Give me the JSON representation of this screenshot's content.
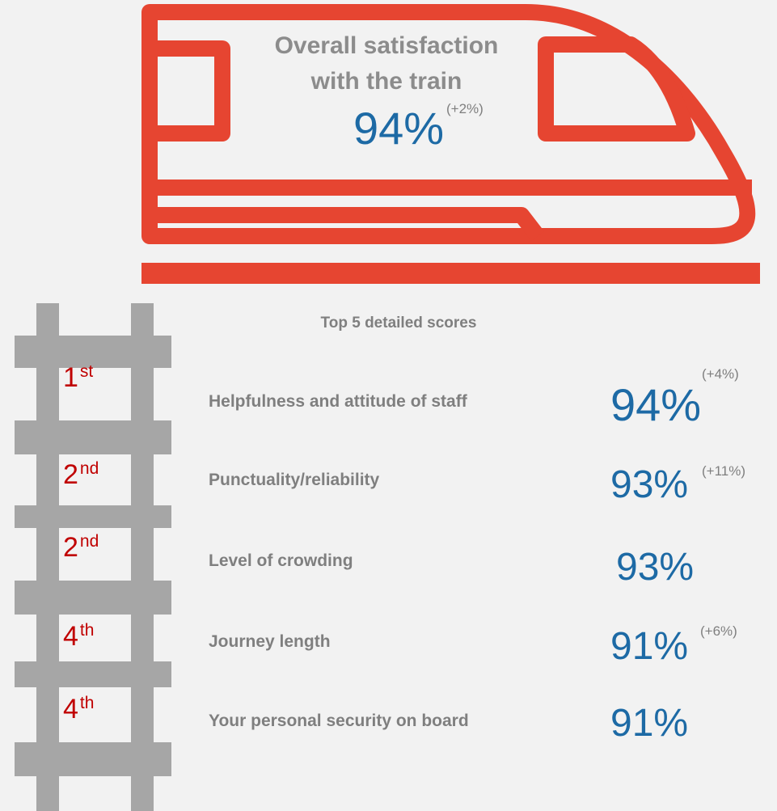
{
  "headline": {
    "title_line1": "Overall satisfaction",
    "title_line2": "with the train",
    "value": "94%",
    "change": "(+2%)"
  },
  "section_title": "Top 5 detailed scores",
  "items": [
    {
      "rank": "1",
      "suffix": "st",
      "label": "Helpfulness and attitude of staff",
      "value": "94%",
      "change": "(+4%)"
    },
    {
      "rank": "2",
      "suffix": "nd",
      "label": "Punctuality/reliability",
      "value": "93%",
      "change": "(+11%)"
    },
    {
      "rank": "2",
      "suffix": "nd",
      "label": "Level of crowding",
      "value": "93%"
    },
    {
      "rank": "4",
      "suffix": "th",
      "label": "Journey length",
      "value": "91%",
      "change": "(+6%)"
    },
    {
      "rank": "4",
      "suffix": "th",
      "label": "Your personal security on board",
      "value": "91%"
    }
  ]
}
